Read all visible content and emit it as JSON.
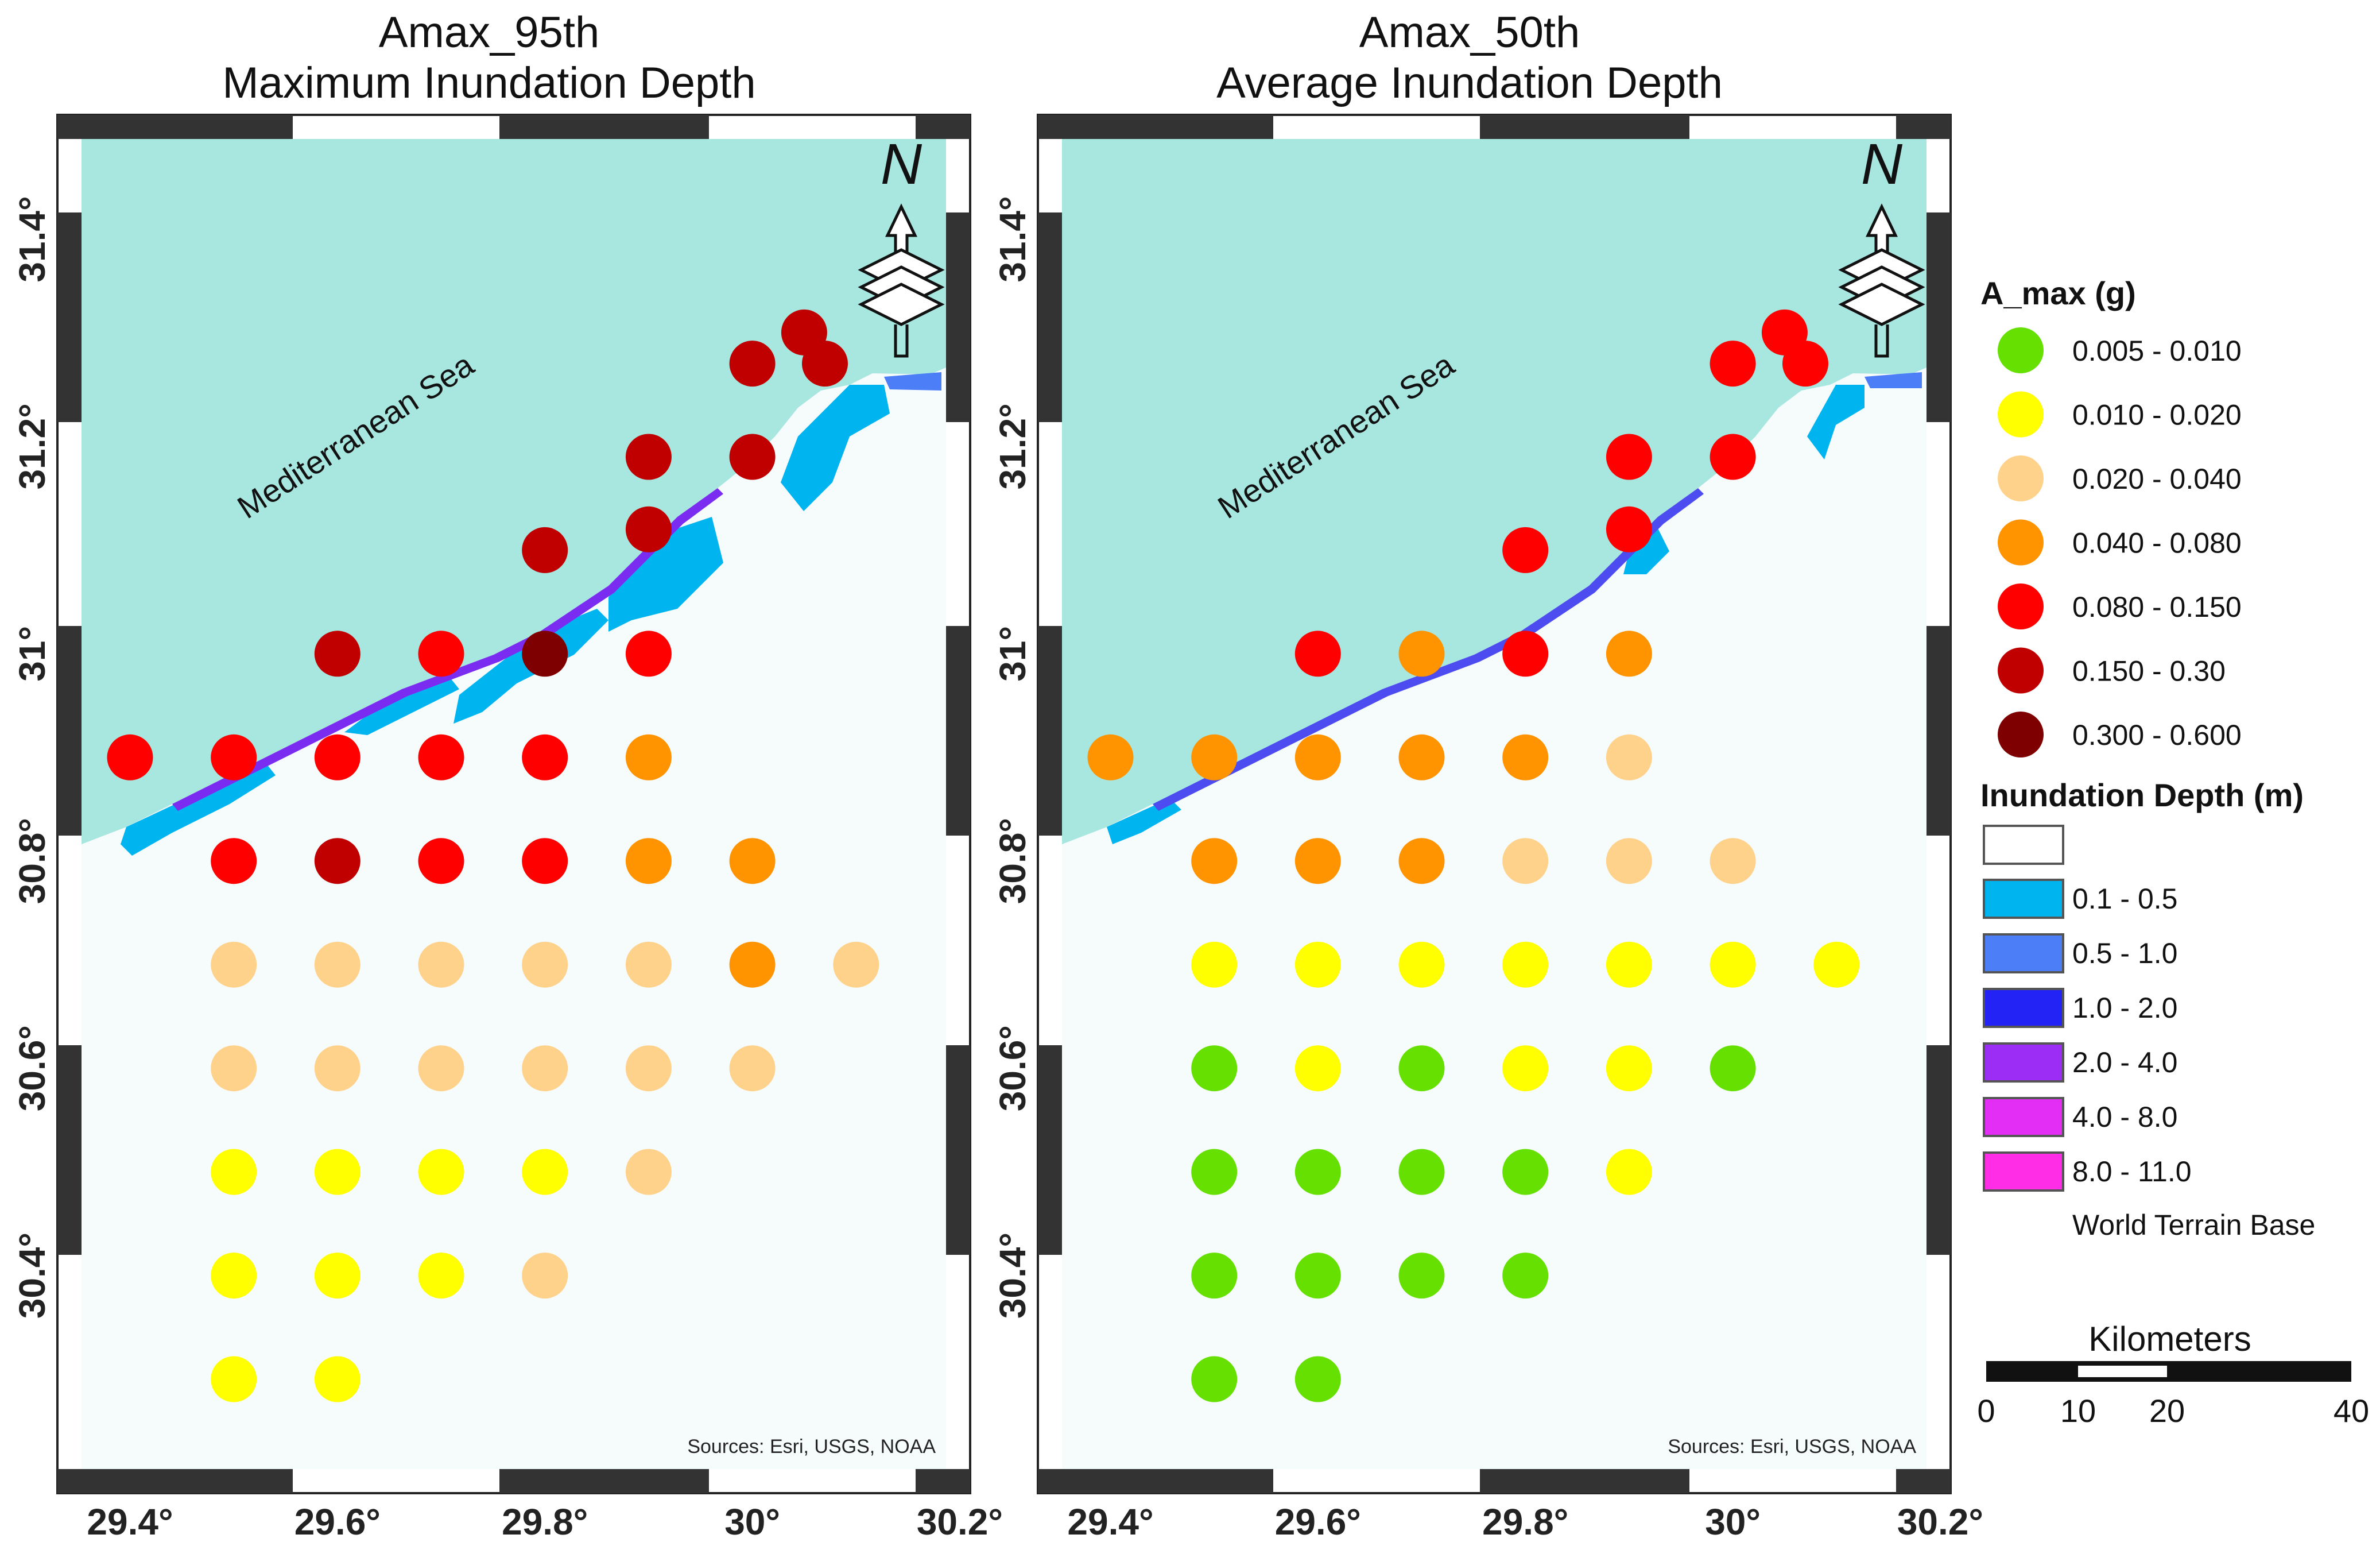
{
  "maps": [
    {
      "title_line1": "Amax_95th",
      "title_line2": "Maximum Inundation Depth",
      "source": "Sources: Esri, USGS, NOAA",
      "sea_label": "Mediterranean Sea",
      "north_label": "N"
    },
    {
      "title_line1": "Amax_50th",
      "title_line2": "Average Inundation Depth",
      "source": "Sources: Esri, USGS, NOAA",
      "sea_label": "Mediterranean Sea",
      "north_label": "N"
    }
  ],
  "axes": {
    "lon_ticks": [
      "29.4°",
      "29.6°",
      "29.8°",
      "30°",
      "30.2°"
    ],
    "lat_ticks": [
      "31.4°",
      "31.2°",
      "31°",
      "30.8°",
      "30.6°",
      "30.4°"
    ],
    "lon_values": [
      29.4,
      29.6,
      29.8,
      30.0,
      30.2
    ],
    "lat_values": [
      31.4,
      31.2,
      31.0,
      30.8,
      30.6,
      30.4
    ],
    "lon_range": [
      29.33,
      30.21
    ],
    "lat_range": [
      30.19,
      31.52
    ]
  },
  "colors": {
    "sea": "#a8e6e0",
    "land": "#f6fbfc",
    "class_1": "#66e000",
    "class_2": "#ffff00",
    "class_3": "#ffd28c",
    "class_4": "#ff9400",
    "class_5": "#ff0000",
    "class_6": "#c00000",
    "class_7": "#7f0000",
    "depth_1": "#00b4f0",
    "depth_2": "#4c7ef8",
    "depth_3": "#2323f5",
    "depth_4": "#9b2df5",
    "depth_5": "#e22ef5",
    "depth_6": "#ff2ee6"
  },
  "chart_data": {
    "type": "scatter",
    "points_95th": [
      {
        "lon": 29.4,
        "lat": 30.9,
        "cls": 5
      },
      {
        "lon": 29.5,
        "lat": 30.9,
        "cls": 5
      },
      {
        "lon": 29.6,
        "lat": 30.9,
        "cls": 5
      },
      {
        "lon": 29.7,
        "lat": 30.9,
        "cls": 5
      },
      {
        "lon": 29.8,
        "lat": 30.9,
        "cls": 5
      },
      {
        "lon": 29.9,
        "lat": 30.9,
        "cls": 4
      },
      {
        "lon": 29.6,
        "lat": 31.0,
        "cls": 6
      },
      {
        "lon": 29.7,
        "lat": 31.0,
        "cls": 5
      },
      {
        "lon": 29.8,
        "lat": 31.0,
        "cls": 7
      },
      {
        "lon": 29.9,
        "lat": 31.0,
        "cls": 5
      },
      {
        "lon": 29.8,
        "lat": 31.1,
        "cls": 6
      },
      {
        "lon": 29.9,
        "lat": 31.12,
        "cls": 6
      },
      {
        "lon": 29.9,
        "lat": 31.19,
        "cls": 6
      },
      {
        "lon": 30.0,
        "lat": 31.19,
        "cls": 6
      },
      {
        "lon": 30.0,
        "lat": 31.28,
        "cls": 6
      },
      {
        "lon": 30.05,
        "lat": 31.31,
        "cls": 6
      },
      {
        "lon": 30.07,
        "lat": 31.28,
        "cls": 6
      },
      {
        "lon": 29.5,
        "lat": 30.8,
        "cls": 5
      },
      {
        "lon": 29.6,
        "lat": 30.8,
        "cls": 6
      },
      {
        "lon": 29.7,
        "lat": 30.8,
        "cls": 5
      },
      {
        "lon": 29.8,
        "lat": 30.8,
        "cls": 5
      },
      {
        "lon": 29.9,
        "lat": 30.8,
        "cls": 4
      },
      {
        "lon": 30.0,
        "lat": 30.8,
        "cls": 4
      },
      {
        "lon": 29.5,
        "lat": 30.7,
        "cls": 3
      },
      {
        "lon": 29.6,
        "lat": 30.7,
        "cls": 3
      },
      {
        "lon": 29.7,
        "lat": 30.7,
        "cls": 3
      },
      {
        "lon": 29.8,
        "lat": 30.7,
        "cls": 3
      },
      {
        "lon": 29.9,
        "lat": 30.7,
        "cls": 3
      },
      {
        "lon": 30.0,
        "lat": 30.7,
        "cls": 4
      },
      {
        "lon": 30.1,
        "lat": 30.7,
        "cls": 3
      },
      {
        "lon": 29.5,
        "lat": 30.6,
        "cls": 3
      },
      {
        "lon": 29.6,
        "lat": 30.6,
        "cls": 3
      },
      {
        "lon": 29.7,
        "lat": 30.6,
        "cls": 3
      },
      {
        "lon": 29.8,
        "lat": 30.6,
        "cls": 3
      },
      {
        "lon": 29.9,
        "lat": 30.6,
        "cls": 3
      },
      {
        "lon": 30.0,
        "lat": 30.6,
        "cls": 3
      },
      {
        "lon": 29.5,
        "lat": 30.5,
        "cls": 2
      },
      {
        "lon": 29.6,
        "lat": 30.5,
        "cls": 2
      },
      {
        "lon": 29.7,
        "lat": 30.5,
        "cls": 2
      },
      {
        "lon": 29.8,
        "lat": 30.5,
        "cls": 2
      },
      {
        "lon": 29.9,
        "lat": 30.5,
        "cls": 3
      },
      {
        "lon": 29.5,
        "lat": 30.4,
        "cls": 2
      },
      {
        "lon": 29.6,
        "lat": 30.4,
        "cls": 2
      },
      {
        "lon": 29.7,
        "lat": 30.4,
        "cls": 2
      },
      {
        "lon": 29.8,
        "lat": 30.4,
        "cls": 3
      },
      {
        "lon": 29.5,
        "lat": 30.3,
        "cls": 2
      },
      {
        "lon": 29.6,
        "lat": 30.3,
        "cls": 2
      }
    ],
    "points_50th": [
      {
        "lon": 29.4,
        "lat": 30.9,
        "cls": 4
      },
      {
        "lon": 29.5,
        "lat": 30.9,
        "cls": 4
      },
      {
        "lon": 29.6,
        "lat": 30.9,
        "cls": 4
      },
      {
        "lon": 29.7,
        "lat": 30.9,
        "cls": 4
      },
      {
        "lon": 29.8,
        "lat": 30.9,
        "cls": 4
      },
      {
        "lon": 29.9,
        "lat": 30.9,
        "cls": 3
      },
      {
        "lon": 29.6,
        "lat": 31.0,
        "cls": 5
      },
      {
        "lon": 29.7,
        "lat": 31.0,
        "cls": 4
      },
      {
        "lon": 29.8,
        "lat": 31.0,
        "cls": 5
      },
      {
        "lon": 29.9,
        "lat": 31.0,
        "cls": 4
      },
      {
        "lon": 29.8,
        "lat": 31.1,
        "cls": 5
      },
      {
        "lon": 29.9,
        "lat": 31.12,
        "cls": 5
      },
      {
        "lon": 29.9,
        "lat": 31.19,
        "cls": 5
      },
      {
        "lon": 30.0,
        "lat": 31.19,
        "cls": 5
      },
      {
        "lon": 30.0,
        "lat": 31.28,
        "cls": 5
      },
      {
        "lon": 30.05,
        "lat": 31.31,
        "cls": 5
      },
      {
        "lon": 30.07,
        "lat": 31.28,
        "cls": 5
      },
      {
        "lon": 29.5,
        "lat": 30.8,
        "cls": 4
      },
      {
        "lon": 29.6,
        "lat": 30.8,
        "cls": 4
      },
      {
        "lon": 29.7,
        "lat": 30.8,
        "cls": 4
      },
      {
        "lon": 29.8,
        "lat": 30.8,
        "cls": 3
      },
      {
        "lon": 29.9,
        "lat": 30.8,
        "cls": 3
      },
      {
        "lon": 30.0,
        "lat": 30.8,
        "cls": 3
      },
      {
        "lon": 29.5,
        "lat": 30.7,
        "cls": 2
      },
      {
        "lon": 29.6,
        "lat": 30.7,
        "cls": 2
      },
      {
        "lon": 29.7,
        "lat": 30.7,
        "cls": 2
      },
      {
        "lon": 29.8,
        "lat": 30.7,
        "cls": 2
      },
      {
        "lon": 29.9,
        "lat": 30.7,
        "cls": 2
      },
      {
        "lon": 30.0,
        "lat": 30.7,
        "cls": 2
      },
      {
        "lon": 30.1,
        "lat": 30.7,
        "cls": 2
      },
      {
        "lon": 29.5,
        "lat": 30.6,
        "cls": 1
      },
      {
        "lon": 29.6,
        "lat": 30.6,
        "cls": 2
      },
      {
        "lon": 29.7,
        "lat": 30.6,
        "cls": 1
      },
      {
        "lon": 29.8,
        "lat": 30.6,
        "cls": 2
      },
      {
        "lon": 29.9,
        "lat": 30.6,
        "cls": 2
      },
      {
        "lon": 30.0,
        "lat": 30.6,
        "cls": 1
      },
      {
        "lon": 29.5,
        "lat": 30.5,
        "cls": 1
      },
      {
        "lon": 29.6,
        "lat": 30.5,
        "cls": 1
      },
      {
        "lon": 29.7,
        "lat": 30.5,
        "cls": 1
      },
      {
        "lon": 29.8,
        "lat": 30.5,
        "cls": 1
      },
      {
        "lon": 29.9,
        "lat": 30.5,
        "cls": 2
      },
      {
        "lon": 29.5,
        "lat": 30.4,
        "cls": 1
      },
      {
        "lon": 29.6,
        "lat": 30.4,
        "cls": 1
      },
      {
        "lon": 29.7,
        "lat": 30.4,
        "cls": 1
      },
      {
        "lon": 29.8,
        "lat": 30.4,
        "cls": 1
      },
      {
        "lon": 29.5,
        "lat": 30.3,
        "cls": 1
      },
      {
        "lon": 29.6,
        "lat": 30.3,
        "cls": 1
      }
    ]
  },
  "legend": {
    "amax_title": "A_max (g)",
    "amax_classes": [
      "0.005 - 0.010",
      "0.010 - 0.020",
      "0.020 - 0.040",
      "0.040 - 0.080",
      "0.080 - 0.150",
      "0.150 - 0.30",
      "0.300 - 0.600"
    ],
    "depth_title": "Inundation Depth (m)",
    "depth_classes": [
      "0.1 - 0.5",
      "0.5 - 1.0",
      "1.0 - 2.0",
      "2.0 - 4.0",
      "4.0 - 8.0",
      "8.0 - 11.0"
    ],
    "basemap": "World Terrain Base"
  },
  "scalebar": {
    "title": "Kilometers",
    "labels": [
      "0",
      "10",
      "20",
      "40"
    ]
  }
}
